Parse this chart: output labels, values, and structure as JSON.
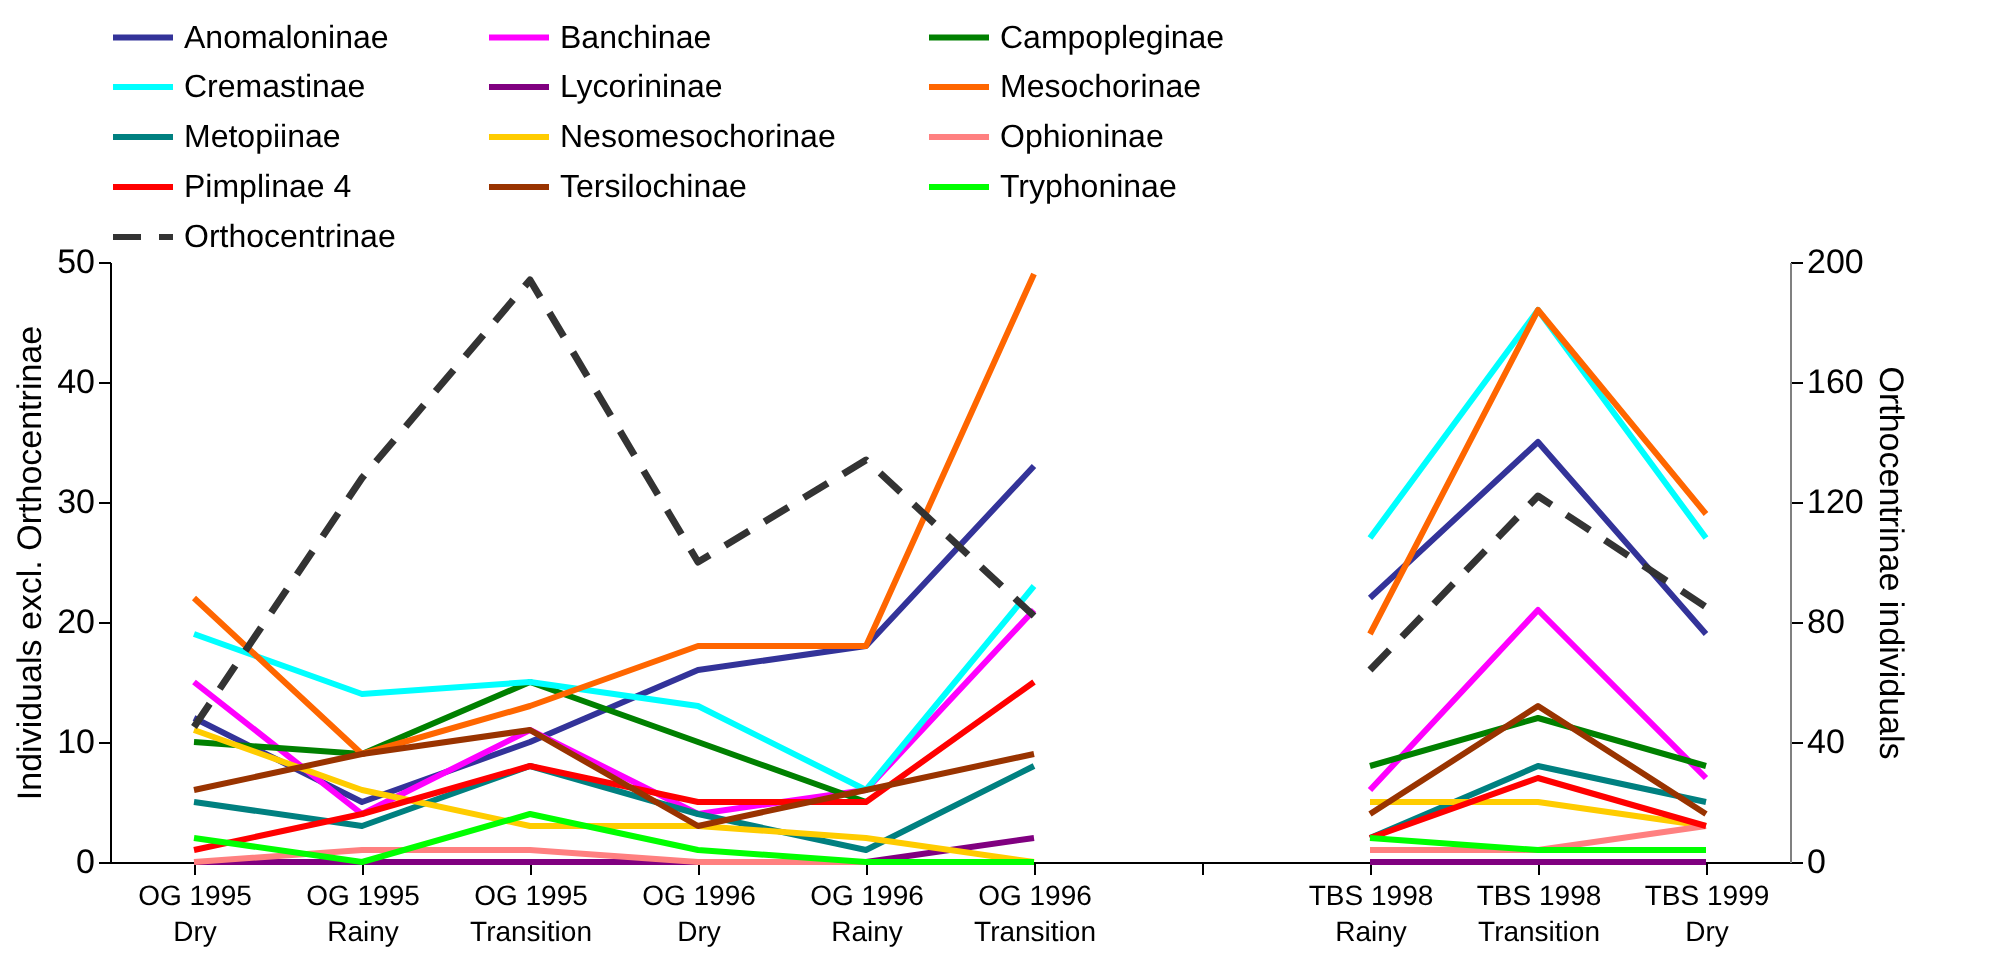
{
  "chart_data": {
    "type": "line",
    "ylabel": "Individuals excl. Orthocentrinae",
    "y2label": "Orthocentrinae individuals",
    "categories": [
      "OG 1995\nDry",
      "OG 1995\nRainy",
      "OG 1995\nTransition",
      "OG 1996\nDry",
      "OG 1996\nRainy",
      "OG 1996\nTransition",
      null,
      "TBS 1998\nRainy",
      "TBS 1998\nTransition",
      "TBS 1999\nDry"
    ],
    "ylim": [
      0,
      50
    ],
    "yticks": [
      0,
      10,
      20,
      30,
      40,
      50
    ],
    "y2lim": [
      0,
      200
    ],
    "y2ticks": [
      0,
      40,
      80,
      120,
      160,
      200
    ],
    "legend": "top",
    "series": [
      {
        "name": "Anomaloninae",
        "color": "#333399",
        "values": [
          12,
          5,
          10,
          16,
          18,
          33,
          null,
          22,
          35,
          19
        ]
      },
      {
        "name": "Banchinae",
        "color": "#ff00ff",
        "values": [
          15,
          4,
          11,
          4,
          6,
          21,
          null,
          6,
          21,
          7
        ]
      },
      {
        "name": "Campopleginae",
        "color": "#008000",
        "values": [
          10,
          9,
          15,
          10,
          5,
          null,
          null,
          8,
          12,
          8
        ]
      },
      {
        "name": "Cremastinae",
        "color": "#00ffff",
        "values": [
          19,
          14,
          15,
          13,
          6,
          23,
          null,
          27,
          46,
          27
        ]
      },
      {
        "name": "Lycorininae",
        "color": "#800080",
        "values": [
          0,
          0,
          0,
          0,
          0,
          2,
          null,
          0,
          0,
          0
        ]
      },
      {
        "name": "Mesochorinae",
        "color": "#ff6600",
        "values": [
          22,
          9,
          13,
          18,
          18,
          49,
          null,
          19,
          46,
          29
        ]
      },
      {
        "name": "Metopiinae",
        "color": "#008080",
        "values": [
          5,
          3,
          8,
          4,
          1,
          8,
          null,
          2,
          8,
          5
        ]
      },
      {
        "name": "Nesomesochorinae",
        "color": "#ffcc00",
        "values": [
          11,
          6,
          3,
          3,
          2,
          0,
          null,
          5,
          5,
          3
        ]
      },
      {
        "name": "Ophioninae",
        "color": "#ff8080",
        "values": [
          0,
          1,
          1,
          0,
          0,
          0,
          null,
          1,
          1,
          3
        ]
      },
      {
        "name": "Pimplinae 4",
        "color": "#ff0000",
        "values": [
          1,
          4,
          8,
          5,
          5,
          15,
          null,
          2,
          7,
          3
        ]
      },
      {
        "name": "Tersilochinae",
        "color": "#993300",
        "values": [
          6,
          9,
          11,
          3,
          6,
          9,
          null,
          4,
          13,
          4
        ]
      },
      {
        "name": "Tryphoninae",
        "color": "#00ff00",
        "values": [
          2,
          0,
          4,
          1,
          0,
          0,
          null,
          2,
          1,
          1
        ]
      },
      {
        "name": "Orthocentrinae",
        "color": "#333333",
        "axis": "y2",
        "line_style": "dashed",
        "values": [
          45,
          128,
          194,
          100,
          134,
          82,
          null,
          64,
          122,
          85
        ]
      }
    ]
  }
}
